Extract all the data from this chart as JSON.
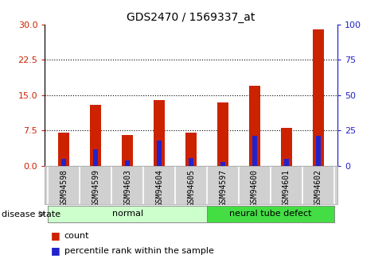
{
  "title": "GDS2470 / 1569337_at",
  "samples": [
    "GSM94598",
    "GSM94599",
    "GSM94603",
    "GSM94604",
    "GSM94605",
    "GSM94597",
    "GSM94600",
    "GSM94601",
    "GSM94602"
  ],
  "count_values": [
    7.0,
    13.0,
    6.5,
    14.0,
    7.0,
    13.5,
    17.0,
    8.0,
    29.0
  ],
  "percentile_values": [
    5.0,
    11.5,
    4.0,
    18.0,
    5.5,
    2.8,
    21.5,
    5.0,
    21.5
  ],
  "groups": [
    {
      "label": "normal",
      "start": 0,
      "end": 5,
      "color": "#bbffbb"
    },
    {
      "label": "neural tube defect",
      "start": 5,
      "end": 9,
      "color": "#55ee55"
    }
  ],
  "ylim_left": [
    0,
    30
  ],
  "ylim_right": [
    0,
    100
  ],
  "yticks_left": [
    0,
    7.5,
    15,
    22.5,
    30
  ],
  "yticks_right": [
    0,
    25,
    50,
    75,
    100
  ],
  "bar_width": 0.35,
  "count_color": "#cc2200",
  "percentile_color": "#2222cc",
  "left_axis_color": "#cc2200",
  "right_axis_color": "#2222cc",
  "tick_label_area_color": "#d0d0d0",
  "disease_state_label": "disease state",
  "legend_count": "count",
  "legend_percentile": "percentile rank within the sample",
  "normal_group_color": "#ccffcc",
  "defect_group_color": "#44dd44"
}
